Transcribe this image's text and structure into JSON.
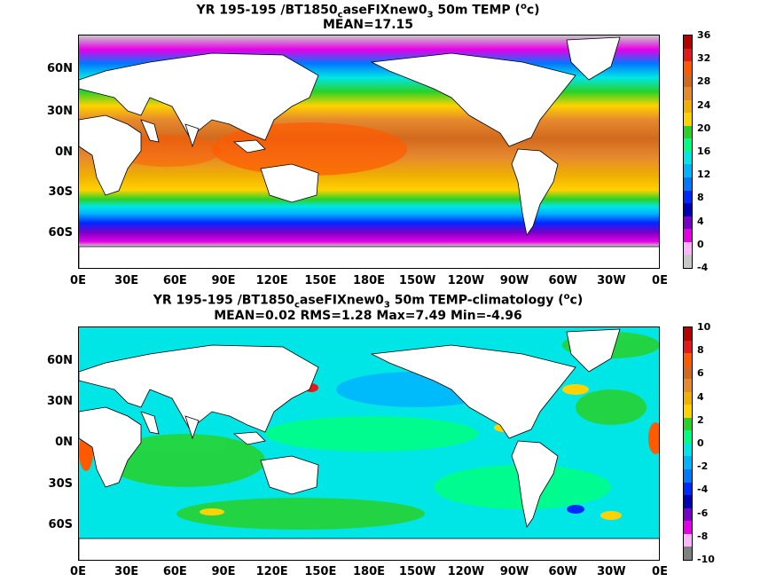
{
  "panel1": {
    "title_pre": "YR 195-195 /BT1850",
    "title_sub1": "c",
    "title_mid": "aseFIXnew0",
    "title_sub2": "3",
    "title_post": " 50m TEMP (",
    "title_sup": "o",
    "title_unit": "c)",
    "stats": "MEAN=17.15",
    "colorbar_labels": [
      "36",
      "32",
      "28",
      "24",
      "20",
      "16",
      "12",
      "8",
      "4",
      "0",
      "-4"
    ],
    "colorbar_colors": [
      "#b40000",
      "#e41a1a",
      "#ff5a00",
      "#d2691e",
      "#e68a2e",
      "#f0b000",
      "#ffd200",
      "#28d228",
      "#00ff80",
      "#00e6e6",
      "#00b4ff",
      "#0078ff",
      "#0028ff",
      "#0000b4",
      "#7800c8",
      "#e600e6",
      "#ffb4ff",
      "#c8c8c8"
    ]
  },
  "panel2": {
    "title_pre": "YR 195-195 /BT1850",
    "title_sub1": "c",
    "title_mid": "aseFIXnew0",
    "title_sub2": "3",
    "title_post": " 50m TEMP-climatology (",
    "title_sup": "o",
    "title_unit": "c)",
    "stats": "MEAN=0.02   RMS=1.28   Max=7.49   Min=-4.96",
    "colorbar_labels": [
      "10",
      "8",
      "6",
      "4",
      "2",
      "0",
      "-2",
      "-4",
      "-6",
      "-8",
      "-10"
    ],
    "colorbar_colors": [
      "#b40000",
      "#e41a1a",
      "#ff5a00",
      "#d2691e",
      "#e68a2e",
      "#f0b000",
      "#ffd200",
      "#28d228",
      "#00ff80",
      "#00e6e6",
      "#00b4ff",
      "#0078ff",
      "#0028ff",
      "#0000b4",
      "#7800c8",
      "#e600e6",
      "#ffb4ff",
      "#808080"
    ]
  },
  "axes": {
    "x_ticks": [
      "0E",
      "30E",
      "60E",
      "90E",
      "120E",
      "150E",
      "180E",
      "150W",
      "120W",
      "90W",
      "60W",
      "30W",
      "0E"
    ],
    "y_ticks": [
      "60N",
      "30N",
      "0N",
      "30S",
      "60S"
    ]
  },
  "colors": {
    "land": "#ffffff",
    "missing": "#c8c8c8"
  }
}
